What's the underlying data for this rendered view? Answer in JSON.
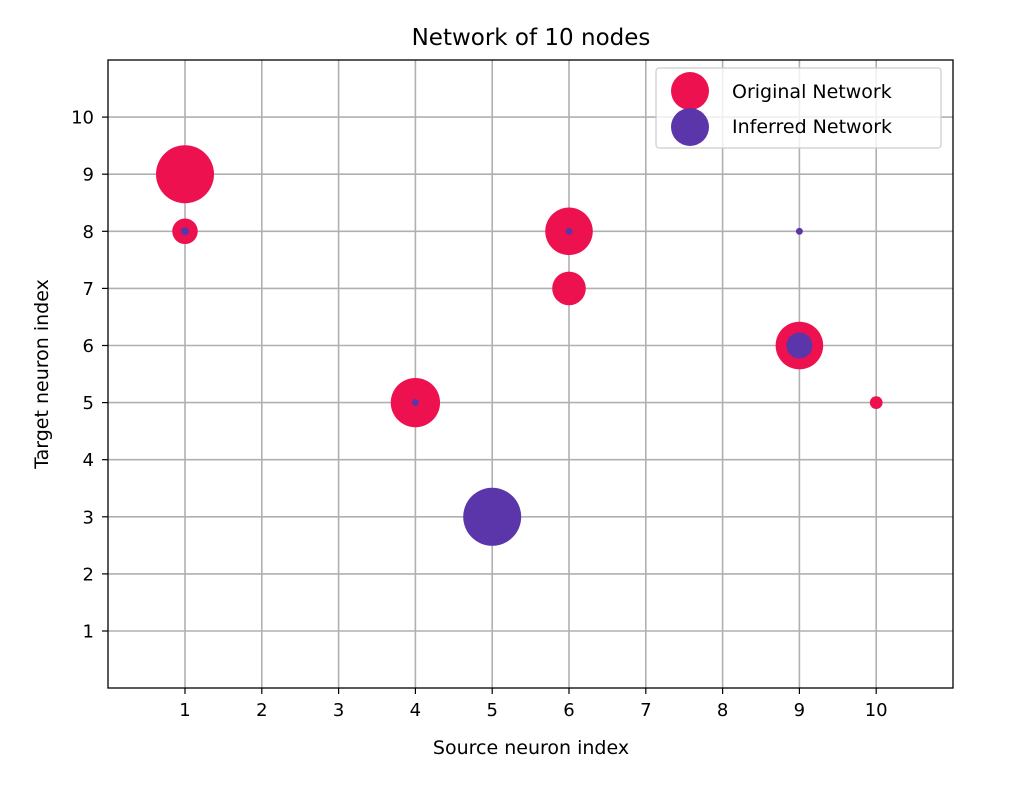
{
  "chart_data": {
    "type": "scatter",
    "title": "Network of 10 nodes",
    "xlabel": "Source neuron index",
    "ylabel": "Target neuron index",
    "xlim": [
      0,
      11
    ],
    "ylim": [
      0,
      11
    ],
    "xticks": [
      1,
      2,
      3,
      4,
      5,
      6,
      7,
      8,
      9,
      10
    ],
    "yticks": [
      1,
      2,
      3,
      4,
      5,
      6,
      7,
      8,
      9,
      10
    ],
    "xtick_labels": [
      "1",
      "2",
      "3",
      "4",
      "5",
      "6",
      "7",
      "8",
      "9",
      "10"
    ],
    "ytick_labels": [
      "1",
      "2",
      "3",
      "4",
      "5",
      "6",
      "7",
      "8",
      "9",
      "10"
    ],
    "grid": true,
    "legend_position": "top-right",
    "series": [
      {
        "name": "Original Network",
        "color": "#ee1150",
        "points": [
          {
            "x": 1,
            "y": 9,
            "weight": 1.0
          },
          {
            "x": 1,
            "y": 8,
            "weight": 0.44
          },
          {
            "x": 4,
            "y": 5,
            "weight": 0.85
          },
          {
            "x": 6,
            "y": 8,
            "weight": 0.82
          },
          {
            "x": 6,
            "y": 7,
            "weight": 0.58
          },
          {
            "x": 9,
            "y": 6,
            "weight": 0.82
          },
          {
            "x": 10,
            "y": 5,
            "weight": 0.22
          }
        ]
      },
      {
        "name": "Inferred Network",
        "color": "#5b35aa",
        "points": [
          {
            "x": 5,
            "y": 3,
            "weight": 1.0
          },
          {
            "x": 9,
            "y": 6,
            "weight": 0.45
          },
          {
            "x": 1,
            "y": 8,
            "weight": 0.14
          },
          {
            "x": 4,
            "y": 5,
            "weight": 0.12
          },
          {
            "x": 6,
            "y": 8,
            "weight": 0.12
          },
          {
            "x": 9,
            "y": 8,
            "weight": 0.12
          }
        ]
      }
    ]
  }
}
